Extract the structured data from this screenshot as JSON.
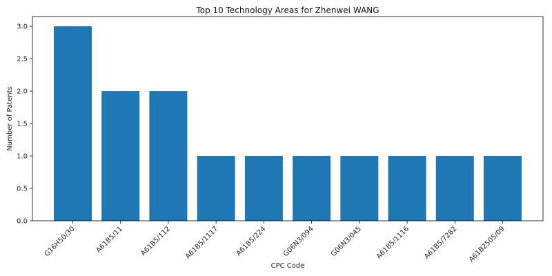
{
  "chart_data": {
    "type": "bar",
    "title": "Top 10 Technology Areas for Zhenwei WANG",
    "xlabel": "CPC Code",
    "ylabel": "Number of Patents",
    "categories": [
      "G16H50/30",
      "A61B5/11",
      "A61B5/112",
      "A61B5/1117",
      "A61B5/224",
      "G06N3/094",
      "G06N3/045",
      "A61B5/1116",
      "A61B5/7282",
      "A61B2505/09"
    ],
    "values": [
      3,
      2,
      2,
      1,
      1,
      1,
      1,
      1,
      1,
      1
    ],
    "ylim": [
      0,
      3.15
    ],
    "yticks": [
      "0.0",
      "0.5",
      "1.0",
      "1.5",
      "2.0",
      "2.5",
      "3.0"
    ],
    "bar_color": "#1f77b4",
    "grid": false
  }
}
